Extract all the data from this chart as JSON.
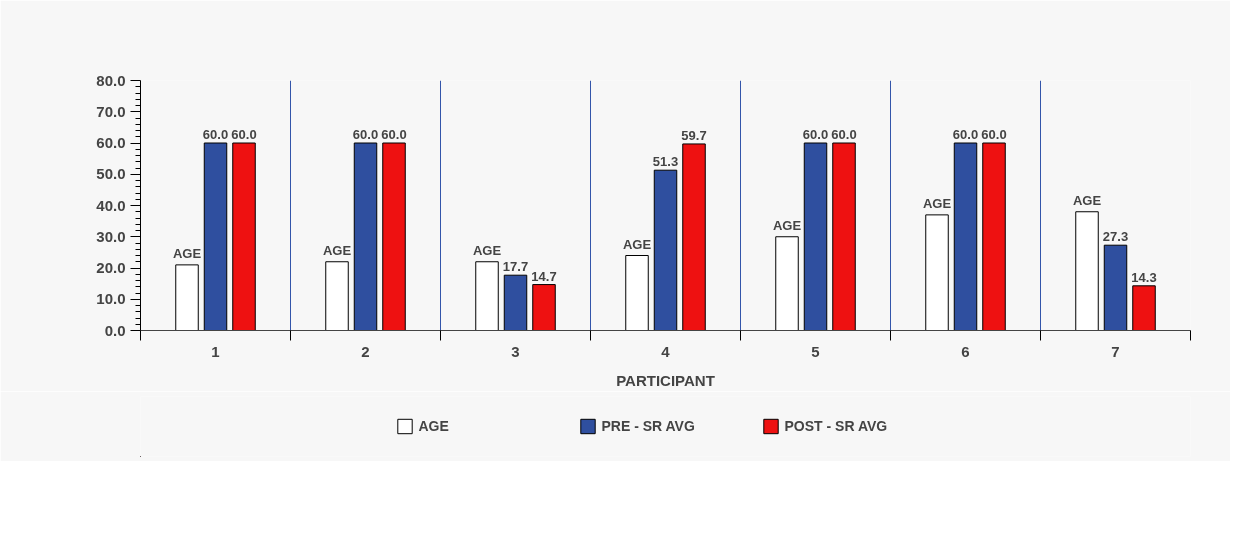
{
  "chart_data": {
    "type": "bar",
    "xlabel": "PARTICIPANT",
    "categories": [
      "1",
      "2",
      "3",
      "4",
      "5",
      "6",
      "7"
    ],
    "series": [
      {
        "name": "AGE",
        "color": "#ffffff",
        "values": [
          21,
          22,
          22,
          24,
          30,
          37,
          38
        ],
        "value_labels": [
          "AGE",
          "AGE",
          "AGE",
          "AGE",
          "AGE",
          "AGE",
          "AGE"
        ]
      },
      {
        "name": "PRE - SR AVG",
        "color": "#2f4f9f",
        "values": [
          60.0,
          60.0,
          17.7,
          51.3,
          60.0,
          60.0,
          27.3
        ],
        "value_labels": [
          "60.0",
          "60.0",
          "17.7",
          "51.3",
          "60.0",
          "60.0",
          "27.3"
        ]
      },
      {
        "name": "POST - SR AVG",
        "color": "#ee1111",
        "values": [
          60.0,
          60.0,
          14.7,
          59.7,
          60.0,
          60.0,
          14.3
        ],
        "value_labels": [
          "60.0",
          "60.0",
          "14.7",
          "59.7",
          "60.0",
          "60.0",
          "14.3"
        ]
      }
    ],
    "ylim": [
      0,
      80
    ],
    "yticks": [
      {
        "value": 0,
        "label": "0.0"
      },
      {
        "value": 10,
        "label": "10.0"
      },
      {
        "value": 20,
        "label": "20.0"
      },
      {
        "value": 30,
        "label": "30.0"
      },
      {
        "value": 40,
        "label": "40.0"
      },
      {
        "value": 50,
        "label": "50.0"
      },
      {
        "value": 60,
        "label": "60.0"
      },
      {
        "value": 70,
        "label": "70.0"
      },
      {
        "value": 80,
        "label": "80.0"
      }
    ],
    "grid": "x",
    "legend": "bottom"
  }
}
